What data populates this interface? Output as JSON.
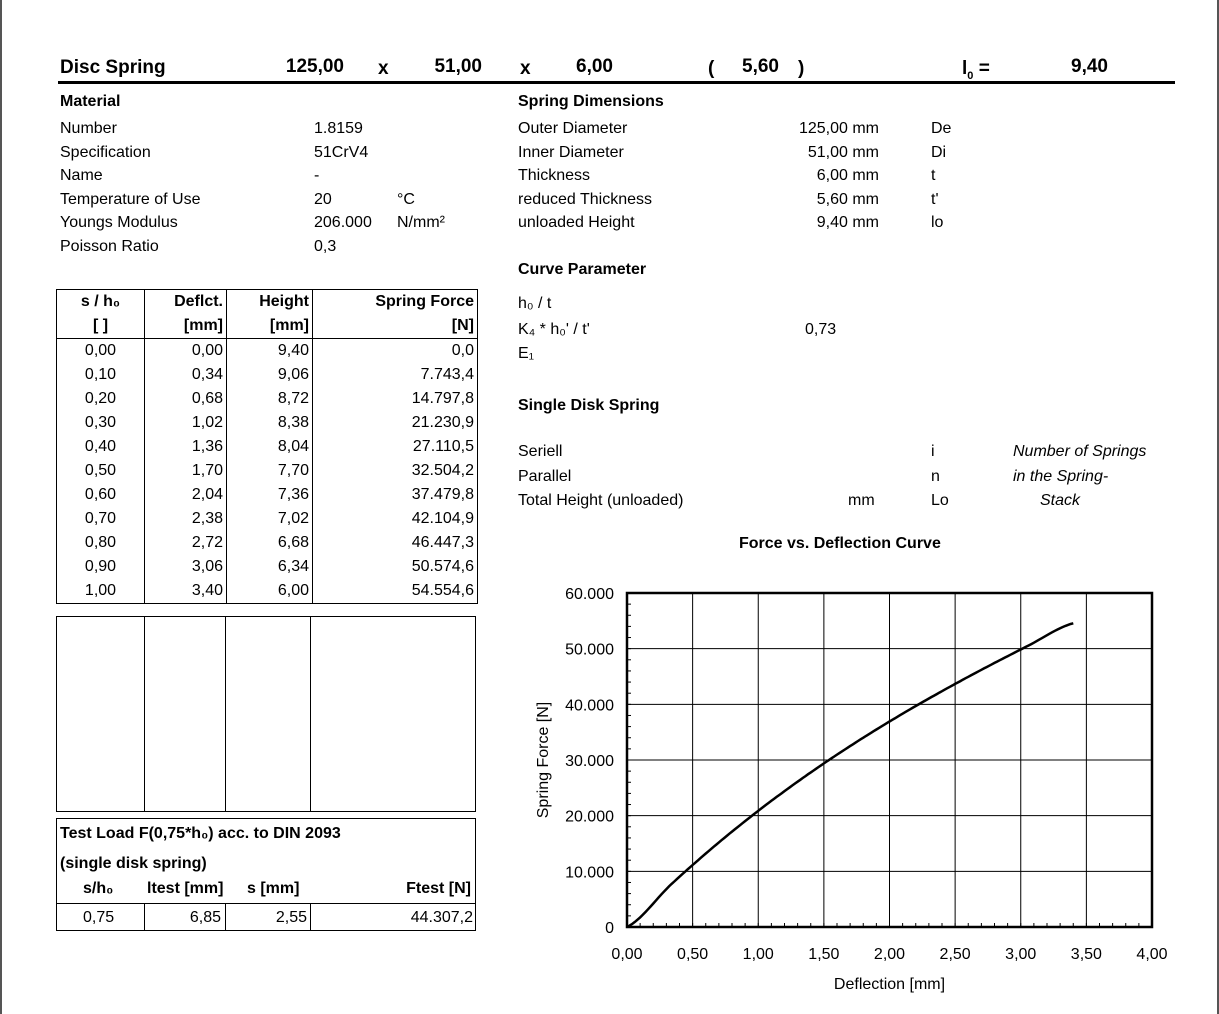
{
  "header": {
    "title": "Disc Spring",
    "de": "125,00",
    "x1": "x",
    "di": "51,00",
    "x2": "x",
    "t": "6,00",
    "tred": "5,60",
    "paren_open": "(",
    "paren_close": ")",
    "l0_label": "l",
    "l0_sub": "0",
    "l0_eq": "=",
    "l0": "9,40"
  },
  "material": {
    "heading": "Material",
    "rows": [
      {
        "label": "Number",
        "value": "1.8159",
        "unit": ""
      },
      {
        "label": "Specification",
        "value": "51CrV4",
        "unit": ""
      },
      {
        "label": "Name",
        "value": "-",
        "unit": ""
      },
      {
        "label": "Temperature of Use",
        "value": "20",
        "unit": "°C"
      },
      {
        "label": "Youngs Modulus",
        "value": "206.000",
        "unit": "N/mm²"
      },
      {
        "label": "Poisson Ratio",
        "value": "0,3",
        "unit": ""
      }
    ]
  },
  "dimensions": {
    "heading": "Spring Dimensions",
    "rows": [
      {
        "label": "Outer Diameter",
        "value": "125,00 mm",
        "symbol": "De"
      },
      {
        "label": "Inner Diameter",
        "value": "51,00 mm",
        "symbol": "Di"
      },
      {
        "label": "Thickness",
        "value": "6,00 mm",
        "symbol": "t"
      },
      {
        "label": "reduced Thickness",
        "value": "5,60 mm",
        "symbol": "t'"
      },
      {
        "label": "unloaded Height",
        "value": "9,40 mm",
        "symbol": "lo"
      }
    ]
  },
  "curve": {
    "heading": "Curve Parameter",
    "r1": "h₀ / t",
    "r2": "K₄ * h₀' / t'",
    "r2_value": "0,73",
    "r3": "E₁"
  },
  "single": {
    "heading": "Single Disk Spring",
    "rows": [
      {
        "label": "Seriell",
        "unit": "",
        "symbol": "i",
        "note": "Number of Springs"
      },
      {
        "label": "Parallel",
        "unit": "",
        "symbol": "n",
        "note": "in the Spring-"
      },
      {
        "label": "Total Height (unloaded)",
        "unit": "mm",
        "symbol": "Lo",
        "note": "Stack"
      }
    ]
  },
  "table": {
    "headers": [
      "s / h₀",
      "Deflct.",
      "Height",
      "Spring Force"
    ],
    "units": [
      "[ ]",
      "[mm]",
      "[mm]",
      "[N]"
    ],
    "rows": [
      [
        "0,00",
        "0,00",
        "9,40",
        "0,0"
      ],
      [
        "0,10",
        "0,34",
        "9,06",
        "7.743,4"
      ],
      [
        "0,20",
        "0,68",
        "8,72",
        "14.797,8"
      ],
      [
        "0,30",
        "1,02",
        "8,38",
        "21.230,9"
      ],
      [
        "0,40",
        "1,36",
        "8,04",
        "27.110,5"
      ],
      [
        "0,50",
        "1,70",
        "7,70",
        "32.504,2"
      ],
      [
        "0,60",
        "2,04",
        "7,36",
        "37.479,8"
      ],
      [
        "0,70",
        "2,38",
        "7,02",
        "42.104,9"
      ],
      [
        "0,80",
        "2,72",
        "6,68",
        "46.447,3"
      ],
      [
        "0,90",
        "3,06",
        "6,34",
        "50.574,6"
      ],
      [
        "1,00",
        "3,40",
        "6,00",
        "54.554,6"
      ]
    ]
  },
  "test": {
    "title": "Test Load F(0,75*h₀) acc. to DIN 2093",
    "subtitle": "(single disk spring)",
    "headers": [
      "s/h₀",
      "ltest [mm]",
      "s [mm]",
      "Ftest [N]"
    ],
    "row": [
      "0,75",
      "6,85",
      "2,55",
      "44.307,2"
    ]
  },
  "chart_data": {
    "type": "line",
    "title": "Force vs. Deflection Curve",
    "xlabel": "Deflection [mm]",
    "ylabel": "Spring Force [N]",
    "xlim": [
      0,
      4
    ],
    "ylim": [
      0,
      60000
    ],
    "grid": true,
    "xticks": [
      "0,00",
      "0,50",
      "1,00",
      "1,50",
      "2,00",
      "2,50",
      "3,00",
      "3,50",
      "4,00"
    ],
    "yticks": [
      "0",
      "10.000",
      "20.000",
      "30.000",
      "40.000",
      "50.000",
      "60.000"
    ],
    "x": [
      0,
      0.34,
      0.68,
      1.02,
      1.36,
      1.7,
      2.04,
      2.38,
      2.72,
      3.06,
      3.4
    ],
    "y": [
      0,
      7743.4,
      14797.8,
      21230.9,
      27110.5,
      32504.2,
      37479.8,
      42104.9,
      46447.3,
      50574.6,
      54554.6
    ]
  }
}
